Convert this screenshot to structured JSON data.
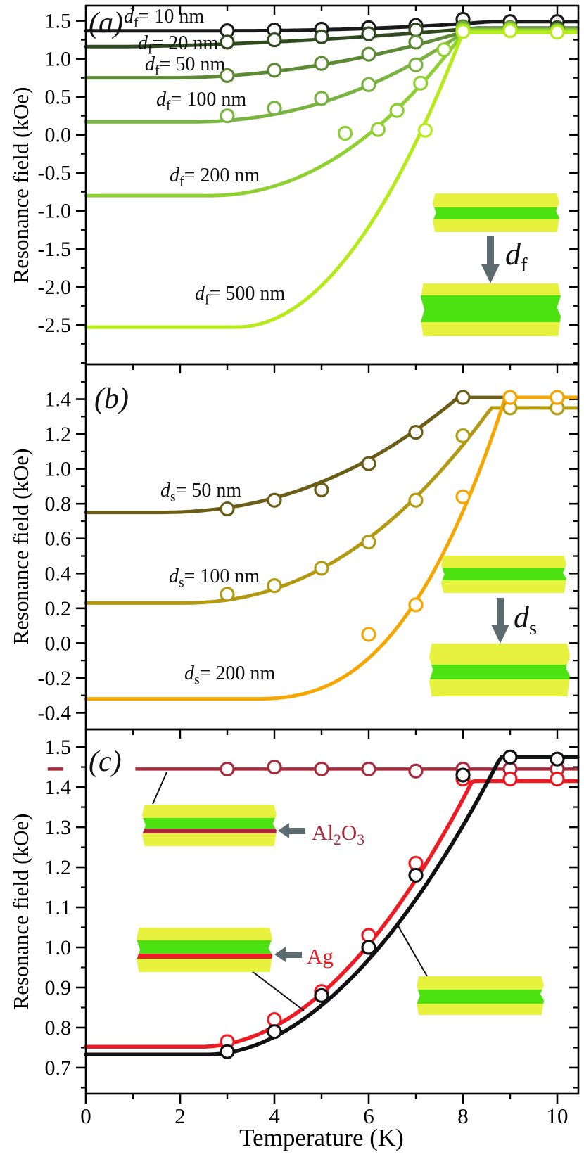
{
  "figure": {
    "xlabel": "Temperature (K)",
    "xticks": [
      0,
      2,
      4,
      6,
      8,
      10
    ],
    "xminor": [
      1,
      3,
      5,
      7,
      9
    ],
    "xlim": [
      0,
      10.45
    ],
    "background": "#ffffff",
    "frame_color": "#000000",
    "arrow_color": "#5b6b70",
    "inset_yellow": "#e6f23d",
    "inset_green": "#4ce212"
  },
  "insets": {
    "a_arrow_label": {
      "var": "d",
      "sub": "f",
      "rest": ""
    },
    "b_arrow_label": {
      "var": "d",
      "sub": "s",
      "rest": ""
    },
    "alox_label": "Al2O3",
    "alox_color": "#ab2a3c",
    "ag_label": "Ag",
    "ag_color": "#ed1c24"
  },
  "chart_data": [
    {
      "type": "line+scatter",
      "panel": "a",
      "letter": "(a)",
      "ylabel": "Resonance field (kOe)",
      "ylim": [
        -3.02,
        1.7
      ],
      "yticks": [
        1.5,
        1.0,
        0.5,
        0.0,
        -0.5,
        -1.0,
        -1.5,
        -2.0,
        -2.5
      ],
      "yminor_step": 0.25,
      "series": [
        {
          "name": "df-10nm",
          "label": {
            "var": "d",
            "sub": "f",
            "rest": "= 10 nm"
          },
          "color": "#1a1a1a",
          "base": 1.37,
          "sat": 1.49,
          "T0": 3.0,
          "Ts": 8.6,
          "p": 2.2,
          "lw": 5,
          "points": [
            [
              3,
              1.37
            ],
            [
              4,
              1.38
            ],
            [
              5,
              1.39
            ],
            [
              6,
              1.41
            ],
            [
              7,
              1.44
            ],
            [
              8,
              1.52
            ],
            [
              9,
              1.49
            ],
            [
              10,
              1.49
            ]
          ]
        },
        {
          "name": "df-20nm",
          "label": {
            "var": "d",
            "sub": "f",
            "rest": "= 20 nm"
          },
          "color": "#2e4a1e",
          "base": 1.16,
          "sat": 1.405,
          "T0": 0.5,
          "Ts": 8.3,
          "p": 1.7,
          "lw": 5,
          "points": [
            [
              3,
              1.22
            ],
            [
              4,
              1.25
            ],
            [
              5,
              1.29
            ],
            [
              6,
              1.33
            ],
            [
              7,
              1.38
            ],
            [
              8,
              1.42
            ],
            [
              9,
              1.41
            ],
            [
              10,
              1.41
            ]
          ]
        },
        {
          "name": "df-50nm",
          "label": {
            "var": "d",
            "sub": "f",
            "rest": "= 50 nm"
          },
          "color": "#5d8a35",
          "base": 0.75,
          "sat": 1.39,
          "T0": 1.8,
          "Ts": 8.2,
          "p": 1.9,
          "lw": 5,
          "points": [
            [
              3,
              0.78
            ],
            [
              4,
              0.85
            ],
            [
              5,
              0.94
            ],
            [
              6,
              1.06
            ],
            [
              7,
              1.22
            ],
            [
              8,
              1.42
            ],
            [
              9,
              1.41
            ],
            [
              10,
              1.38
            ]
          ]
        },
        {
          "name": "df-100nm",
          "label": {
            "var": "d",
            "sub": "f",
            "rest": "= 100 nm"
          },
          "color": "#79b440",
          "base": 0.17,
          "sat": 1.385,
          "T0": 2.2,
          "Ts": 8.1,
          "p": 2.1,
          "lw": 5,
          "points": [
            [
              3,
              0.25
            ],
            [
              4,
              0.35
            ],
            [
              5,
              0.48
            ],
            [
              6,
              0.66
            ],
            [
              7,
              0.92
            ],
            [
              8,
              1.4
            ],
            [
              9,
              1.4
            ],
            [
              10,
              1.37
            ]
          ]
        },
        {
          "name": "df-200nm",
          "label": {
            "var": "d",
            "sub": "f",
            "rest": "= 200 nm"
          },
          "color": "#8ed02f",
          "base": -0.8,
          "sat": 1.375,
          "T0": 2.6,
          "Ts": 8.05,
          "p": 2.1,
          "lw": 5,
          "points": [
            [
              5.5,
              0.02
            ],
            [
              6.2,
              0.07
            ],
            [
              6.6,
              0.32
            ],
            [
              7.1,
              0.68
            ],
            [
              7.6,
              1.12
            ],
            [
              8,
              1.38
            ],
            [
              9,
              1.38
            ],
            [
              10,
              1.36
            ]
          ]
        },
        {
          "name": "df-500nm",
          "label": {
            "var": "d",
            "sub": "f",
            "rest": "= 500 nm"
          },
          "color": "#b5ec17",
          "base": -2.53,
          "sat": 1.35,
          "T0": 3.2,
          "Ts": 8.0,
          "p": 2.0,
          "lw": 5,
          "points": [
            [
              7.2,
              0.06
            ],
            [
              8,
              1.36
            ],
            [
              9,
              1.37
            ],
            [
              10,
              1.35
            ]
          ]
        }
      ]
    },
    {
      "type": "line+scatter",
      "panel": "b",
      "letter": "(b)",
      "ylabel": "Resonance field (kOe)",
      "ylim": [
        -0.495,
        1.6
      ],
      "yticks": [
        1.4,
        1.2,
        1.0,
        0.8,
        0.6,
        0.4,
        0.2,
        0.0,
        -0.2,
        -0.4
      ],
      "yminor_step": 0.1,
      "series": [
        {
          "name": "ds-50nm",
          "label": {
            "var": "d",
            "sub": "s",
            "rest": "= 50 nm"
          },
          "color": "#6b5c16",
          "base": 0.75,
          "sat": 1.41,
          "T0": 1.5,
          "Ts": 7.9,
          "p": 2.2,
          "lw": 5,
          "points": [
            [
              3,
              0.77
            ],
            [
              4,
              0.82
            ],
            [
              5,
              0.88
            ],
            [
              6,
              1.03
            ],
            [
              7,
              1.21
            ],
            [
              8,
              1.41
            ],
            [
              9,
              1.41
            ],
            [
              10,
              1.41
            ]
          ]
        },
        {
          "name": "ds-100nm",
          "label": {
            "var": "d",
            "sub": "s",
            "rest": "= 100 nm"
          },
          "color": "#b2990f",
          "base": 0.23,
          "sat": 1.35,
          "T0": 2.0,
          "Ts": 8.6,
          "p": 2.2,
          "lw": 5,
          "points": [
            [
              3,
              0.28
            ],
            [
              4,
              0.33
            ],
            [
              5,
              0.43
            ],
            [
              6,
              0.58
            ],
            [
              7,
              0.82
            ],
            [
              8,
              1.19
            ],
            [
              9,
              1.35
            ],
            [
              10,
              1.35
            ]
          ]
        },
        {
          "name": "ds-200nm",
          "label": {
            "var": "d",
            "sub": "s",
            "rest": "= 200 nm"
          },
          "color": "#f7a600",
          "base": -0.32,
          "sat": 1.41,
          "T0": 3.5,
          "Ts": 8.9,
          "p": 2.6,
          "lw": 5,
          "points": [
            [
              6,
              0.05
            ],
            [
              7,
              0.22
            ],
            [
              8,
              0.84
            ],
            [
              9,
              1.41
            ],
            [
              10,
              1.41
            ]
          ]
        }
      ]
    },
    {
      "type": "line+scatter",
      "panel": "c",
      "letter": "(c)",
      "ylabel": "Resonance field (kOe)",
      "ylim": [
        0.635,
        1.544
      ],
      "yticks": [
        1.5,
        1.4,
        1.3,
        1.2,
        1.1,
        1.0,
        0.9,
        0.8,
        0.7
      ],
      "yminor_step": 0.05,
      "series": [
        {
          "name": "alox-interlayer",
          "label": null,
          "color": "#ab2a3c",
          "base": 1.445,
          "sat": 1.445,
          "T0": 0,
          "Ts": 1,
          "p": 1,
          "lw": 4.5,
          "flat_segments": [
            [
              -0.81,
              -0.48
            ],
            [
              1.05,
              10.45
            ]
          ],
          "points": [
            [
              3,
              1.445
            ],
            [
              4,
              1.45
            ],
            [
              5,
              1.445
            ],
            [
              6,
              1.445
            ],
            [
              7,
              1.44
            ],
            [
              8,
              1.445
            ],
            [
              9,
              1.445
            ],
            [
              10,
              1.445
            ]
          ]
        },
        {
          "name": "ag-interlayer",
          "label": null,
          "color": "#ed1c24",
          "base": 0.752,
          "sat": 1.415,
          "T0": 2.4,
          "Ts": 8.2,
          "p": 2.0,
          "lw": 5.5,
          "points": [
            [
              3,
              0.765
            ],
            [
              4,
              0.82
            ],
            [
              5,
              0.89
            ],
            [
              6,
              1.03
            ],
            [
              7,
              1.21
            ],
            [
              8,
              1.42
            ],
            [
              9,
              1.42
            ],
            [
              10,
              1.42
            ]
          ]
        },
        {
          "name": "no-interlayer",
          "label": null,
          "color": "#111111",
          "base": 0.733,
          "sat": 1.475,
          "T0": 2.6,
          "Ts": 8.8,
          "p": 1.9,
          "lw": 5.5,
          "points": [
            [
              3,
              0.74
            ],
            [
              4,
              0.79
            ],
            [
              5,
              0.88
            ],
            [
              6,
              1.0
            ],
            [
              7,
              1.18
            ],
            [
              8,
              1.43
            ],
            [
              9,
              1.475
            ],
            [
              10,
              1.47
            ]
          ]
        }
      ]
    }
  ]
}
